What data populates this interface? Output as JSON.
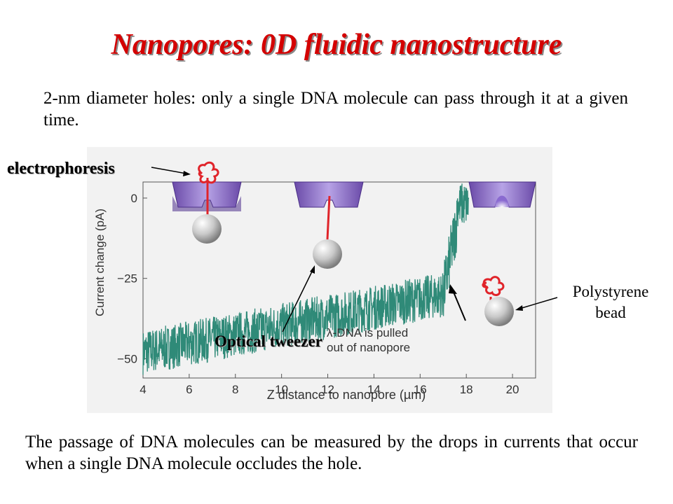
{
  "slide": {
    "title": "Nanopores: 0D fluidic nanostructure",
    "intro": "2-nm diameter holes: only a single DNA molecule can pass through it at a given time.",
    "conclusion": "The passage of DNA molecules can be measured by the drops in currents that occur when a single DNA molecule occludes the hole."
  },
  "callouts": {
    "electrophoresis": "electrophoresis",
    "optical_tweezer": "Optical tweezer",
    "polystyrene_line1": "Polystyrene",
    "polystyrene_line2": "bead"
  },
  "chart_data": {
    "type": "line",
    "xlabel": "Z distance to nanopore (µm)",
    "ylabel": "Current change (pA)",
    "xlim": [
      4,
      21
    ],
    "ylim": [
      -56,
      5
    ],
    "x_ticks": [
      4,
      6,
      8,
      10,
      12,
      14,
      16,
      18,
      20
    ],
    "y_ticks": [
      0,
      -25,
      -50
    ],
    "x_tick_labels": [
      "4",
      "6",
      "8",
      "10",
      "12",
      "14",
      "16",
      "18",
      "20"
    ],
    "y_tick_labels": [
      "0",
      "−25",
      "−50"
    ],
    "annotation_line1": "λ-DNA is pulled",
    "annotation_line2": "out of nanopore",
    "grid": false,
    "series": [
      {
        "color": "#2f8a78",
        "segments": [
          {
            "x": [
              4.0,
              17.0
            ],
            "y": [
              -48,
              -30
            ]
          },
          {
            "x": [
              17.0,
              17.6
            ],
            "y": [
              -30,
              -7
            ]
          },
          {
            "x": [
              17.6,
              18.1
            ],
            "y": [
              -2,
              -2
            ]
          }
        ]
      }
    ]
  }
}
